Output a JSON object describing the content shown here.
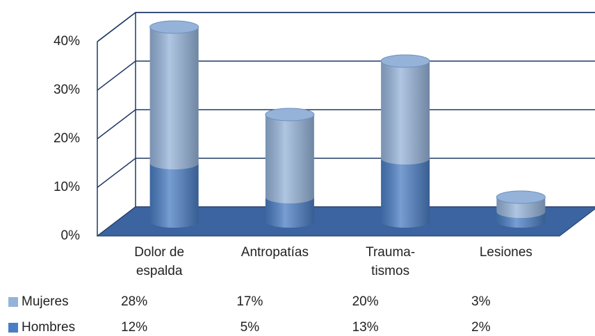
{
  "chart_data": {
    "type": "bar3d",
    "categories": [
      "Dolor de espalda",
      "Antropatías",
      "Trauma-tismos",
      "Lesiones"
    ],
    "series": [
      {
        "name": "Hombres",
        "color": "#4a7dc3",
        "values": [
          12,
          5,
          13,
          2
        ],
        "value_labels": [
          "12%",
          "5%",
          "13%",
          "2%"
        ]
      },
      {
        "name": "Mujeres",
        "color": "#95b3d9",
        "values": [
          28,
          17,
          20,
          3
        ],
        "value_labels": [
          "28%",
          "17%",
          "20%",
          "3%"
        ]
      }
    ],
    "stacked": true,
    "ylim": [
      0,
      40
    ],
    "yticks": [
      {
        "value": 0,
        "label": "0%"
      },
      {
        "value": 10,
        "label": "10%"
      },
      {
        "value": 20,
        "label": "20%"
      },
      {
        "value": 30,
        "label": "30%"
      },
      {
        "value": 40,
        "label": "40%"
      }
    ],
    "grid": true
  }
}
